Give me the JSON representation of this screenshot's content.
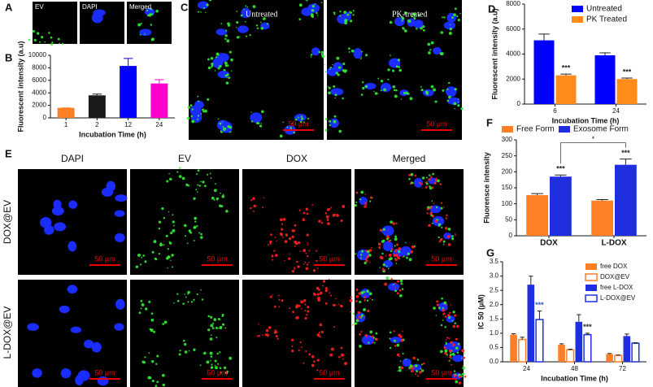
{
  "panel_labels": [
    "A",
    "B",
    "C",
    "D",
    "E",
    "F",
    "G"
  ],
  "A": {
    "images": [
      "EV",
      "DAPI",
      "Merged"
    ]
  },
  "C": {
    "images": [
      "Untreated",
      "PK-treated"
    ],
    "scale_bar": "50 µm"
  },
  "E": {
    "columns": [
      "DAPI",
      "EV",
      "DOX",
      "Merged"
    ],
    "rows": [
      "DOX@EV",
      "L-DOX@EV"
    ],
    "scale_bar": "50 µm"
  },
  "chart_data": [
    {
      "type": "bar",
      "categories": [
        "1",
        "2",
        "12",
        "24"
      ],
      "values": [
        1600,
        3600,
        8300,
        5500
      ],
      "errors": [
        0,
        200,
        1200,
        600
      ],
      "colors": [
        "#ff7f27",
        "#1a1a1a",
        "#0000ff",
        "#ff00cc"
      ],
      "ylim": [
        0,
        10000
      ],
      "yticks": [
        0,
        2000,
        4000,
        6000,
        8000,
        10000
      ],
      "xlabel": "Incubation Time (h)",
      "ylabel": "Fluorescent intensity (a.u)"
    },
    {
      "type": "bar",
      "categories": [
        "6",
        "24"
      ],
      "series": [
        {
          "name": "Untreated",
          "color": "#0000ff",
          "values": [
            5100,
            3900
          ],
          "errors": [
            500,
            200
          ]
        },
        {
          "name": "PK Treated",
          "color": "#ff8c1a",
          "values": [
            2300,
            2000
          ],
          "errors": [
            100,
            80
          ]
        }
      ],
      "ylim": [
        0,
        8000
      ],
      "yticks": [
        0,
        2000,
        4000,
        6000,
        8000
      ],
      "xlabel": "Incubation Time (h)",
      "ylabel": "Fluorescent intensity (a.u)",
      "legend": "upper right",
      "annotations": [
        {
          "text": "***",
          "series": 1,
          "category": 0
        },
        {
          "text": "***",
          "series": 1,
          "category": 1
        }
      ]
    },
    {
      "type": "bar",
      "categories": [
        "DOX",
        "L-DOX"
      ],
      "series": [
        {
          "name": "Free Form",
          "color": "#ff7f27",
          "values": [
            127,
            110
          ],
          "errors": [
            5,
            3
          ]
        },
        {
          "name": "Exosome Form",
          "color": "#1f2fe0",
          "values": [
            185,
            222
          ],
          "errors": [
            5,
            18
          ]
        }
      ],
      "ylim": [
        0,
        300
      ],
      "yticks": [
        0,
        50,
        100,
        150,
        200,
        250,
        300
      ],
      "ylabel": "Fluorensce intensity",
      "legend": "top",
      "annotations": [
        {
          "text": "***",
          "series": 1,
          "category": 0
        },
        {
          "text": "***",
          "series": 1,
          "category": 1
        },
        {
          "text": "*",
          "series": 1,
          "categories": [
            0,
            1
          ]
        }
      ]
    },
    {
      "type": "bar",
      "categories": [
        "24",
        "48",
        "72"
      ],
      "series": [
        {
          "name": "free DOX",
          "color": "#ff7f27",
          "filled": true,
          "values": [
            0.95,
            0.6,
            0.27
          ],
          "errors": [
            0.03,
            0.03,
            0.02
          ]
        },
        {
          "name": "DOX@EV",
          "color": "#ff7f27",
          "filled": false,
          "values": [
            0.78,
            0.42,
            0.22
          ],
          "errors": [
            0.08,
            0.02,
            0.02
          ]
        },
        {
          "name": "free L-DOX",
          "color": "#1f2fe0",
          "filled": true,
          "values": [
            2.7,
            1.4,
            0.9
          ],
          "errors": [
            0.3,
            0.25,
            0.07
          ]
        },
        {
          "name": "L-DOX@EV",
          "color": "#1f2fe0",
          "filled": false,
          "values": [
            1.48,
            0.95,
            0.65
          ],
          "errors": [
            0.3,
            0.05,
            0.02
          ]
        }
      ],
      "ylim": [
        0,
        3.5
      ],
      "yticks": [
        {
          "value": 0,
          "label": "0.0"
        },
        0.5,
        {
          "value": 1,
          "label": "1.0"
        },
        1.5,
        {
          "value": 2,
          "label": "2.0"
        },
        2.5,
        {
          "value": 3,
          "label": "3.0"
        },
        3.5
      ],
      "xlabel": "Incubation Time (h)",
      "ylabel": "IC 50 (µM)",
      "legend": "upper right",
      "annotations": [
        {
          "text": "***",
          "series": 3,
          "category": 0,
          "color": "#3050c0"
        },
        {
          "text": "***",
          "series": 3,
          "category": 1
        }
      ]
    }
  ]
}
